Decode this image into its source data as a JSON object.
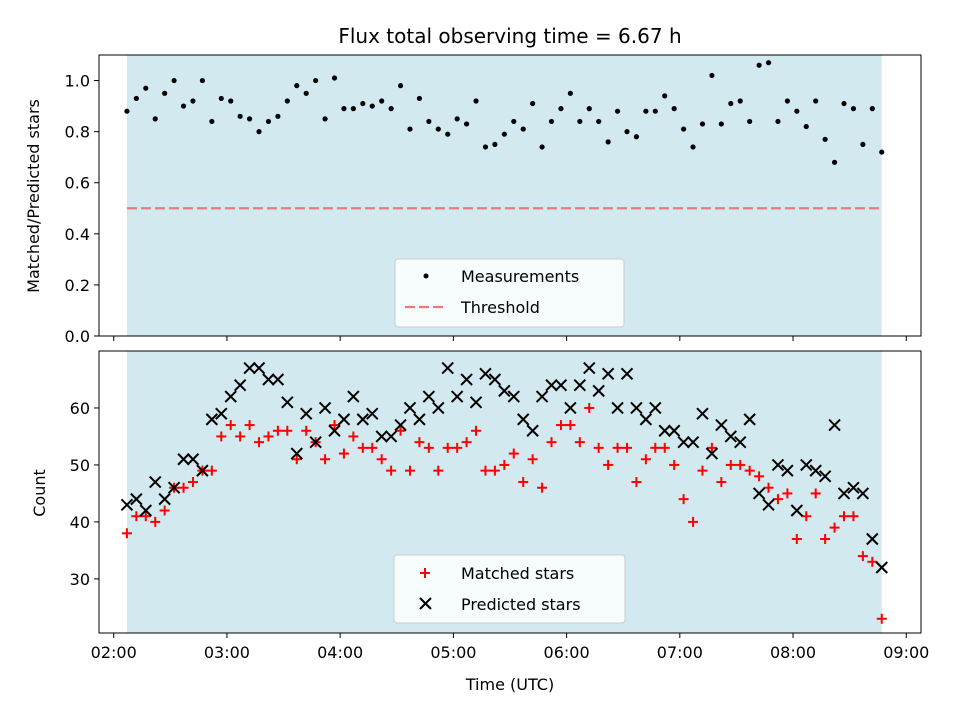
{
  "figure": {
    "title": "Flux total observing time = 6.67 h",
    "xlabel": "Time (UTC)",
    "x_ticks": [
      "02:00",
      "03:00",
      "04:00",
      "05:00",
      "06:00",
      "07:00",
      "08:00",
      "09:00"
    ],
    "observing_window_color": "#d2e9ef"
  },
  "chart_data": [
    {
      "type": "scatter",
      "ylabel": "Matched/Predicted stars",
      "ylim": [
        0,
        1.1
      ],
      "y_ticks": [
        "0.0",
        "0.2",
        "0.4",
        "0.6",
        "0.8",
        "1.0"
      ],
      "x_range_hours": [
        1.87,
        9.13
      ],
      "observing_window_hours": [
        2.117,
        8.783
      ],
      "legend": {
        "placement": "lower-center",
        "entries": [
          "Measurements",
          "Threshold"
        ]
      },
      "threshold": {
        "name": "Threshold",
        "y": 0.5,
        "color": "#e87a7a",
        "style": "dashed"
      },
      "series": [
        {
          "name": "Measurements",
          "color": "#000000",
          "marker": "dot",
          "x": [
            "02:07",
            "02:12",
            "02:17",
            "02:22",
            "02:27",
            "02:32",
            "02:37",
            "02:42",
            "02:47",
            "02:52",
            "02:57",
            "03:02",
            "03:07",
            "03:12",
            "03:17",
            "03:22",
            "03:27",
            "03:32",
            "03:37",
            "03:42",
            "03:47",
            "03:52",
            "03:57",
            "04:02",
            "04:07",
            "04:12",
            "04:17",
            "04:22",
            "04:27",
            "04:32",
            "04:37",
            "04:42",
            "04:47",
            "04:52",
            "04:57",
            "05:02",
            "05:07",
            "05:12",
            "05:17",
            "05:22",
            "05:27",
            "05:32",
            "05:37",
            "05:42",
            "05:47",
            "05:52",
            "05:57",
            "06:02",
            "06:07",
            "06:12",
            "06:17",
            "06:22",
            "06:27",
            "06:32",
            "06:37",
            "06:42",
            "06:47",
            "06:52",
            "06:57",
            "07:02",
            "07:07",
            "07:12",
            "07:17",
            "07:22",
            "07:27",
            "07:32",
            "07:37",
            "07:42",
            "07:47",
            "07:52",
            "07:57",
            "08:02",
            "08:07",
            "08:12",
            "08:17",
            "08:22",
            "08:27",
            "08:32",
            "08:37",
            "08:42",
            "08:47"
          ],
          "y": [
            0.88,
            0.93,
            0.97,
            0.85,
            0.95,
            1.0,
            0.9,
            0.92,
            1.0,
            0.84,
            0.93,
            0.92,
            0.86,
            0.85,
            0.8,
            0.84,
            0.86,
            0.92,
            0.98,
            0.95,
            1.0,
            0.85,
            1.01,
            0.89,
            0.89,
            0.91,
            0.9,
            0.92,
            0.89,
            0.98,
            0.81,
            0.93,
            0.84,
            0.81,
            0.79,
            0.85,
            0.83,
            0.92,
            0.74,
            0.75,
            0.79,
            0.84,
            0.81,
            0.91,
            0.74,
            0.84,
            0.89,
            0.95,
            0.84,
            0.89,
            0.84,
            0.76,
            0.88,
            0.8,
            0.78,
            0.88,
            0.88,
            0.94,
            0.89,
            0.81,
            0.74,
            0.83,
            1.02,
            0.83,
            0.91,
            0.92,
            0.84,
            1.06,
            1.07,
            0.84,
            0.92,
            0.88,
            0.82,
            0.92,
            0.77,
            0.68,
            0.91,
            0.89,
            0.75,
            0.89,
            0.72
          ]
        }
      ]
    },
    {
      "type": "scatter",
      "ylabel": "Count",
      "ylim": [
        20.5,
        70
      ],
      "y_ticks": [
        "30",
        "40",
        "50",
        "60"
      ],
      "x_range_hours": [
        1.87,
        9.13
      ],
      "observing_window_hours": [
        2.117,
        8.783
      ],
      "legend": {
        "placement": "lower-center",
        "entries": [
          "Matched stars",
          "Predicted stars"
        ]
      },
      "series": [
        {
          "name": "Matched stars",
          "color": "#ff0000",
          "marker": "plus",
          "x": [
            "02:07",
            "02:12",
            "02:17",
            "02:22",
            "02:27",
            "02:32",
            "02:37",
            "02:42",
            "02:47",
            "02:52",
            "02:57",
            "03:02",
            "03:07",
            "03:12",
            "03:17",
            "03:22",
            "03:27",
            "03:32",
            "03:37",
            "03:42",
            "03:47",
            "03:52",
            "03:57",
            "04:02",
            "04:07",
            "04:12",
            "04:17",
            "04:22",
            "04:27",
            "04:32",
            "04:37",
            "04:42",
            "04:47",
            "04:52",
            "04:57",
            "05:02",
            "05:07",
            "05:12",
            "05:17",
            "05:22",
            "05:27",
            "05:32",
            "05:37",
            "05:42",
            "05:47",
            "05:52",
            "05:57",
            "06:02",
            "06:07",
            "06:12",
            "06:17",
            "06:22",
            "06:27",
            "06:32",
            "06:37",
            "06:42",
            "06:47",
            "06:52",
            "06:57",
            "07:02",
            "07:07",
            "07:12",
            "07:17",
            "07:22",
            "07:27",
            "07:32",
            "07:37",
            "07:42",
            "07:47",
            "07:52",
            "07:57",
            "08:02",
            "08:07",
            "08:12",
            "08:17",
            "08:22",
            "08:27",
            "08:32",
            "08:37",
            "08:42",
            "08:47"
          ],
          "y": [
            38,
            41,
            41,
            40,
            42,
            46,
            46,
            47,
            49,
            49,
            55,
            57,
            55,
            57,
            54,
            55,
            56,
            56,
            51,
            56,
            54,
            51,
            57,
            52,
            55,
            53,
            53,
            51,
            49,
            56,
            49,
            54,
            53,
            49,
            53,
            53,
            54,
            56,
            49,
            49,
            50,
            52,
            47,
            51,
            46,
            54,
            57,
            57,
            54,
            60,
            53,
            50,
            53,
            53,
            47,
            51,
            53,
            53,
            50,
            44,
            40,
            49,
            53,
            47,
            50,
            50,
            49,
            48,
            46,
            44,
            45,
            37,
            41,
            45,
            37,
            39,
            41,
            41,
            34,
            33,
            23
          ]
        },
        {
          "name": "Predicted stars",
          "color": "#000000",
          "marker": "x",
          "x": [
            "02:07",
            "02:12",
            "02:17",
            "02:22",
            "02:27",
            "02:32",
            "02:37",
            "02:42",
            "02:47",
            "02:52",
            "02:57",
            "03:02",
            "03:07",
            "03:12",
            "03:17",
            "03:22",
            "03:27",
            "03:32",
            "03:37",
            "03:42",
            "03:47",
            "03:52",
            "03:57",
            "04:02",
            "04:07",
            "04:12",
            "04:17",
            "04:22",
            "04:27",
            "04:32",
            "04:37",
            "04:42",
            "04:47",
            "04:52",
            "04:57",
            "05:02",
            "05:07",
            "05:12",
            "05:17",
            "05:22",
            "05:27",
            "05:32",
            "05:37",
            "05:42",
            "05:47",
            "05:52",
            "05:57",
            "06:02",
            "06:07",
            "06:12",
            "06:17",
            "06:22",
            "06:27",
            "06:32",
            "06:37",
            "06:42",
            "06:47",
            "06:52",
            "06:57",
            "07:02",
            "07:07",
            "07:12",
            "07:17",
            "07:22",
            "07:27",
            "07:32",
            "07:37",
            "07:42",
            "07:47",
            "07:52",
            "07:57",
            "08:02",
            "08:07",
            "08:12",
            "08:17",
            "08:22",
            "08:27",
            "08:32",
            "08:37",
            "08:42",
            "08:47"
          ],
          "y": [
            43,
            44,
            42,
            47,
            44,
            46,
            51,
            51,
            49,
            58,
            59,
            62,
            64,
            67,
            67,
            65,
            65,
            61,
            52,
            59,
            54,
            60,
            56,
            58,
            62,
            58,
            59,
            55,
            55,
            57,
            60,
            58,
            62,
            60,
            67,
            62,
            65,
            61,
            66,
            65,
            63,
            62,
            58,
            56,
            62,
            64,
            64,
            60,
            64,
            67,
            63,
            66,
            60,
            66,
            60,
            58,
            60,
            56,
            56,
            54,
            54,
            59,
            52,
            57,
            55,
            54,
            58,
            45,
            43,
            50,
            49,
            42,
            50,
            49,
            48,
            57,
            45,
            46,
            45,
            37,
            32
          ]
        }
      ]
    }
  ]
}
